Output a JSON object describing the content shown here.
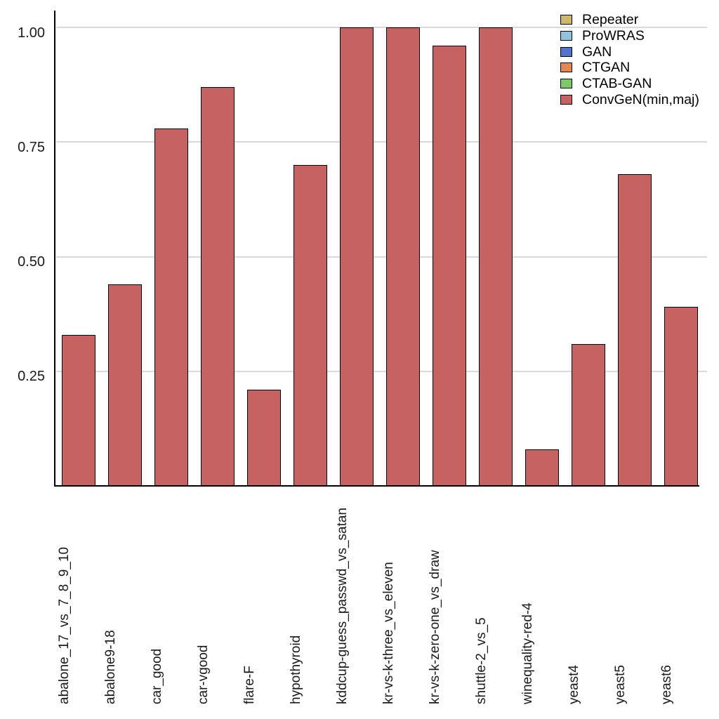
{
  "chart_data": {
    "type": "bar",
    "title": "",
    "xlabel": "",
    "ylabel": "",
    "categories": [
      "abalone_17_vs_7_8_9_10",
      "abalone9-18",
      "car_good",
      "car-vgood",
      "flare-F",
      "hypothyroid",
      "kddcup-guess_passwd_vs_satan",
      "kr-vs-k-three_vs_eleven",
      "kr-vs-k-zero-one_vs_draw",
      "shuttle-2_vs_5",
      "winequality-red-4",
      "yeast4",
      "yeast5",
      "yeast6"
    ],
    "values": [
      0.33,
      0.44,
      0.78,
      0.87,
      0.21,
      0.7,
      1.0,
      1.0,
      0.96,
      1.0,
      0.08,
      0.31,
      0.68,
      0.39
    ],
    "plotted_series": "ConvGeN(min,maj)",
    "ylim": [
      0,
      1.0
    ],
    "yticks": [
      0.25,
      0.5,
      0.75,
      1.0
    ],
    "ytick_labels": [
      "0.25",
      "0.50",
      "0.75",
      "1.00"
    ],
    "grid": "horizontal",
    "legend": {
      "position": "top-right",
      "entries": [
        {
          "label": "Repeater",
          "color": "#cdb96e"
        },
        {
          "label": "ProWRAS",
          "color": "#8fc3e0"
        },
        {
          "label": "GAN",
          "color": "#4f74c9"
        },
        {
          "label": "CTGAN",
          "color": "#e2874f"
        },
        {
          "label": "CTAB-GAN",
          "color": "#7bc967"
        },
        {
          "label": "ConvGeN(min,maj)",
          "color": "#c66361"
        }
      ]
    },
    "colors": {
      "bar_fill": "#c66361",
      "bar_edge": "#000000",
      "gridline": "#d9d9d9",
      "axis": "#000000",
      "tick_text": "#1a1a1a"
    }
  }
}
